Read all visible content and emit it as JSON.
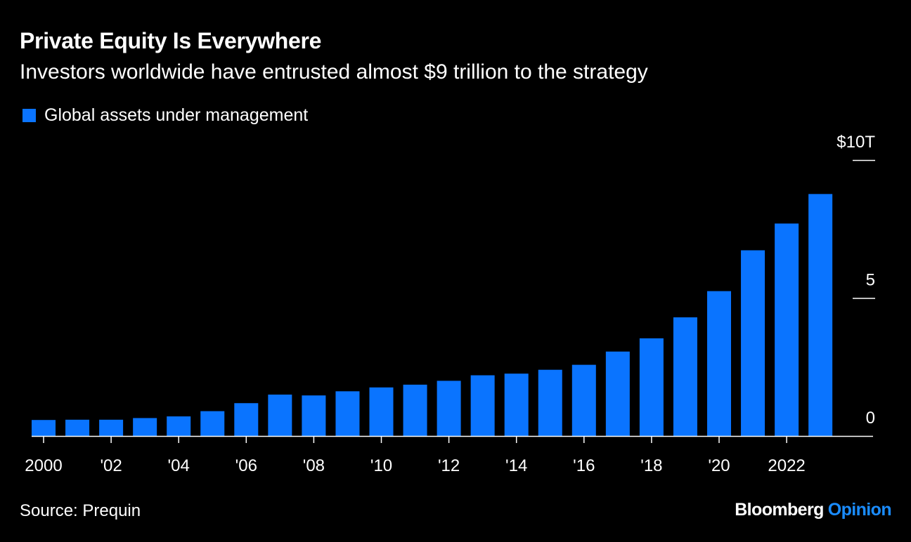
{
  "header": {
    "title": "Private Equity Is Everywhere",
    "subtitle": "Investors worldwide have entrusted almost $9 trillion to the strategy"
  },
  "legend": {
    "label": "Global assets under management"
  },
  "footer": {
    "source": "Source: Prequin",
    "brand_main": "Bloomberg",
    "brand_accent": "Opinion"
  },
  "colors": {
    "bar": "#0a74ff",
    "background": "#000000",
    "text": "#ffffff",
    "brand_accent": "#1a8cff",
    "axis": "#ffffff"
  },
  "chart_data": {
    "type": "bar",
    "title": "Private Equity Is Everywhere",
    "subtitle": "Investors worldwide have entrusted almost $9 trillion to the strategy",
    "xlabel": "",
    "ylabel": "",
    "unit": "trillion USD",
    "ylim": [
      0,
      10
    ],
    "y_ticks": [
      {
        "value": 10,
        "label": "$10T"
      },
      {
        "value": 5,
        "label": "5"
      },
      {
        "value": 0,
        "label": "0"
      }
    ],
    "y_axis_position": "right",
    "grid": false,
    "legend_position": "top-left",
    "categories": [
      "2000",
      "2001",
      "2002",
      "2003",
      "2004",
      "2005",
      "2006",
      "2007",
      "2008",
      "2009",
      "2010",
      "2011",
      "2012",
      "2013",
      "2014",
      "2015",
      "2016",
      "2017",
      "2018",
      "2019",
      "2020",
      "2021",
      "2022",
      "2023"
    ],
    "x_tick_labels": [
      "2000",
      "",
      "'02",
      "",
      "'04",
      "",
      "'06",
      "",
      "'08",
      "",
      "'10",
      "",
      "'12",
      "",
      "'14",
      "",
      "'16",
      "",
      "'18",
      "",
      "'20",
      "",
      "2022",
      ""
    ],
    "series": [
      {
        "name": "Global assets under management",
        "values": [
          0.58,
          0.59,
          0.59,
          0.65,
          0.71,
          0.9,
          1.19,
          1.5,
          1.47,
          1.62,
          1.76,
          1.86,
          2.0,
          2.2,
          2.26,
          2.4,
          2.58,
          3.06,
          3.54,
          4.3,
          5.25,
          6.73,
          7.7,
          8.77
        ]
      }
    ]
  }
}
